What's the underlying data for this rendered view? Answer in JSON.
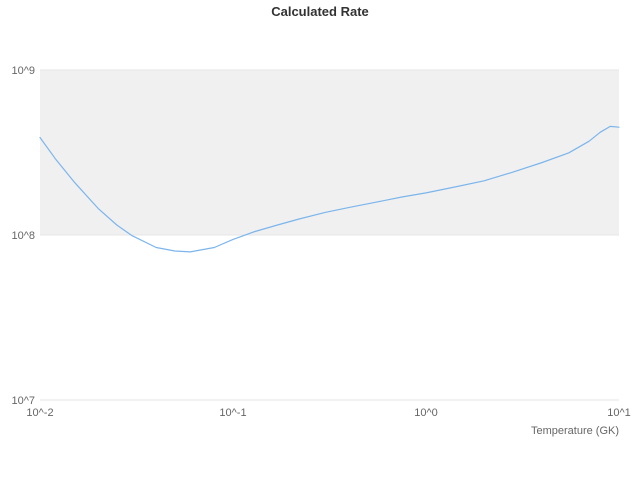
{
  "chart_data": {
    "type": "line",
    "title": "Calculated Rate",
    "xlabel": "Temperature (GK)",
    "ylabel": "",
    "x_scale": "log",
    "y_scale": "log",
    "xlim_log": [
      -2,
      1
    ],
    "ylim_log": [
      7,
      9
    ],
    "xtick_values": [
      0.01,
      0.1,
      1,
      10
    ],
    "xtick_labels": [
      "10^-2",
      "10^-1",
      "10^0",
      "10^1"
    ],
    "ytick_values": [
      10000000,
      100000000,
      1000000000
    ],
    "ytick_labels": [
      "10^7",
      "10^8",
      "10^9"
    ],
    "band": {
      "y_from": 100000000,
      "y_to": 1000000000
    },
    "series": [
      {
        "name": "Calculated Rate",
        "x": [
          0.01,
          0.012,
          0.015,
          0.02,
          0.025,
          0.03,
          0.04,
          0.05,
          0.06,
          0.08,
          0.1,
          0.13,
          0.17,
          0.22,
          0.3,
          0.4,
          0.55,
          0.75,
          1.0,
          1.4,
          2.0,
          2.8,
          4.0,
          5.5,
          7.0,
          8.0,
          9.0,
          10.0
        ],
        "y": [
          390000000,
          290000000,
          210000000,
          145000000,
          115000000,
          99000000,
          84000000,
          80000000,
          79000000,
          84000000,
          94000000,
          105000000,
          115000000,
          125000000,
          137000000,
          147000000,
          158000000,
          170000000,
          180000000,
          195000000,
          213000000,
          240000000,
          275000000,
          315000000,
          370000000,
          420000000,
          455000000,
          450000000
        ]
      }
    ],
    "colors": {
      "line": "#7cb5ec",
      "band": "#f0f0f0",
      "grid": "#e6e6e6",
      "tick_text": "#666666",
      "title_text": "#333333"
    },
    "legend": "none",
    "grid": "horizontal-bands"
  }
}
